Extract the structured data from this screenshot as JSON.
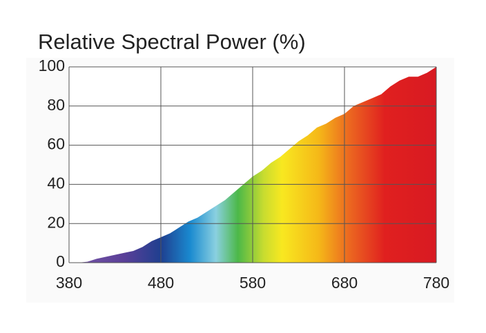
{
  "chart_data": {
    "type": "area",
    "title": "Relative Spectral Power (%)",
    "x": [
      380,
      390,
      400,
      410,
      420,
      430,
      440,
      450,
      460,
      470,
      480,
      490,
      500,
      510,
      520,
      530,
      540,
      550,
      560,
      570,
      580,
      590,
      600,
      610,
      620,
      630,
      640,
      650,
      660,
      670,
      680,
      690,
      700,
      710,
      720,
      730,
      740,
      750,
      760,
      770,
      780
    ],
    "values": [
      0,
      0,
      0.5,
      2,
      3,
      4,
      5,
      6,
      8,
      11,
      13,
      15,
      18,
      21,
      23,
      26,
      29,
      32,
      36,
      40,
      44,
      47,
      51,
      54,
      58,
      62,
      65,
      69,
      71,
      74,
      76,
      80,
      82,
      84,
      86,
      90,
      93,
      95,
      95,
      97,
      100
    ],
    "xlim": [
      380,
      780
    ],
    "xticks": [
      380,
      480,
      580,
      680,
      780
    ],
    "ylim": [
      0,
      100
    ],
    "yticks": [
      0,
      20,
      40,
      60,
      80,
      100
    ],
    "grid": true
  }
}
